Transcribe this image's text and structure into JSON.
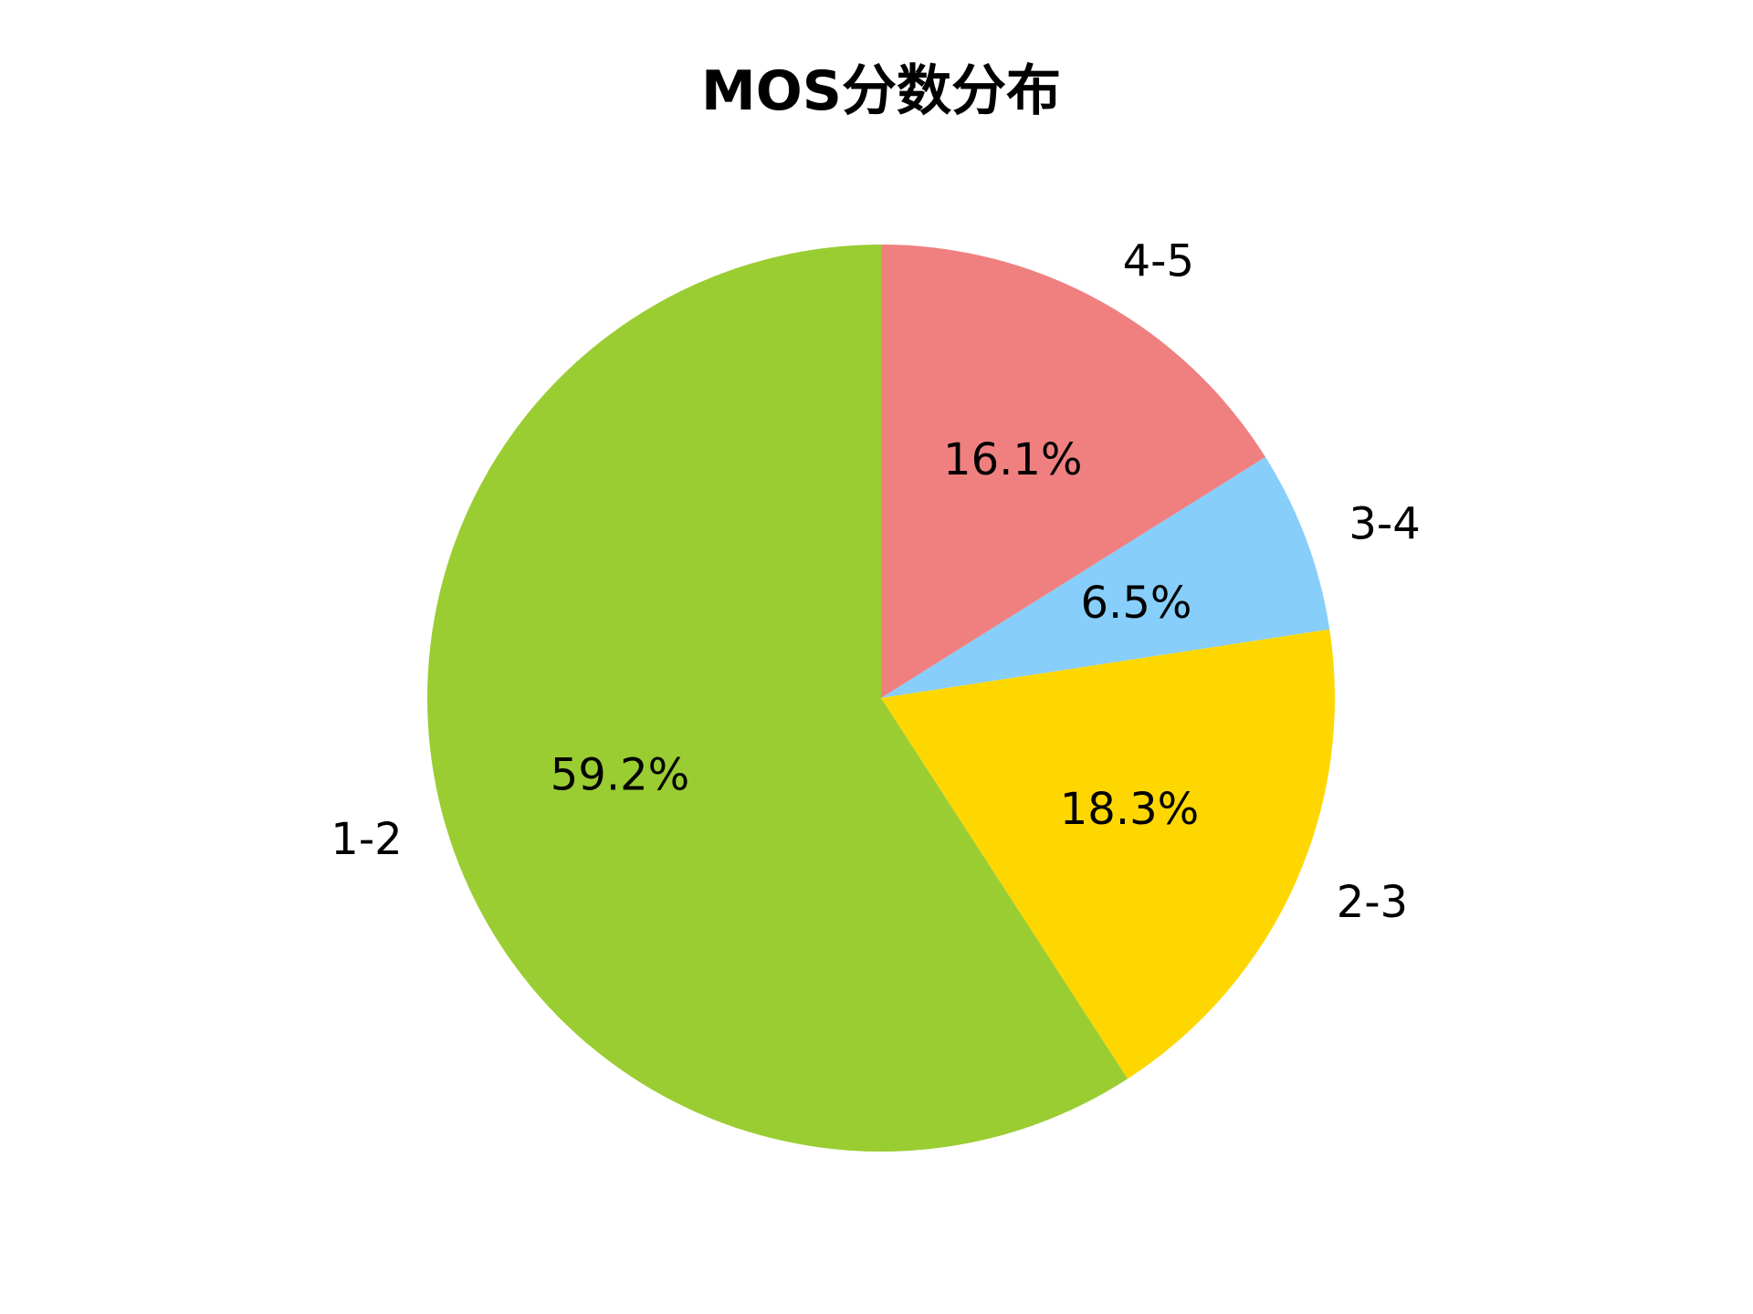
{
  "chart_data": {
    "type": "pie",
    "title": "MOS分数分布",
    "categories": [
      "4-5",
      "3-4",
      "2-3",
      "1-2"
    ],
    "values": [
      16.1,
      6.5,
      18.3,
      59.2
    ],
    "value_labels": [
      "16.1%",
      "6.5%",
      "18.3%",
      "59.2%"
    ],
    "colors": [
      "#f08080",
      "#87cefa",
      "#ffd700",
      "#9acd32"
    ],
    "start_angle_deg": 90,
    "direction": "clockwise",
    "legend": "none"
  }
}
